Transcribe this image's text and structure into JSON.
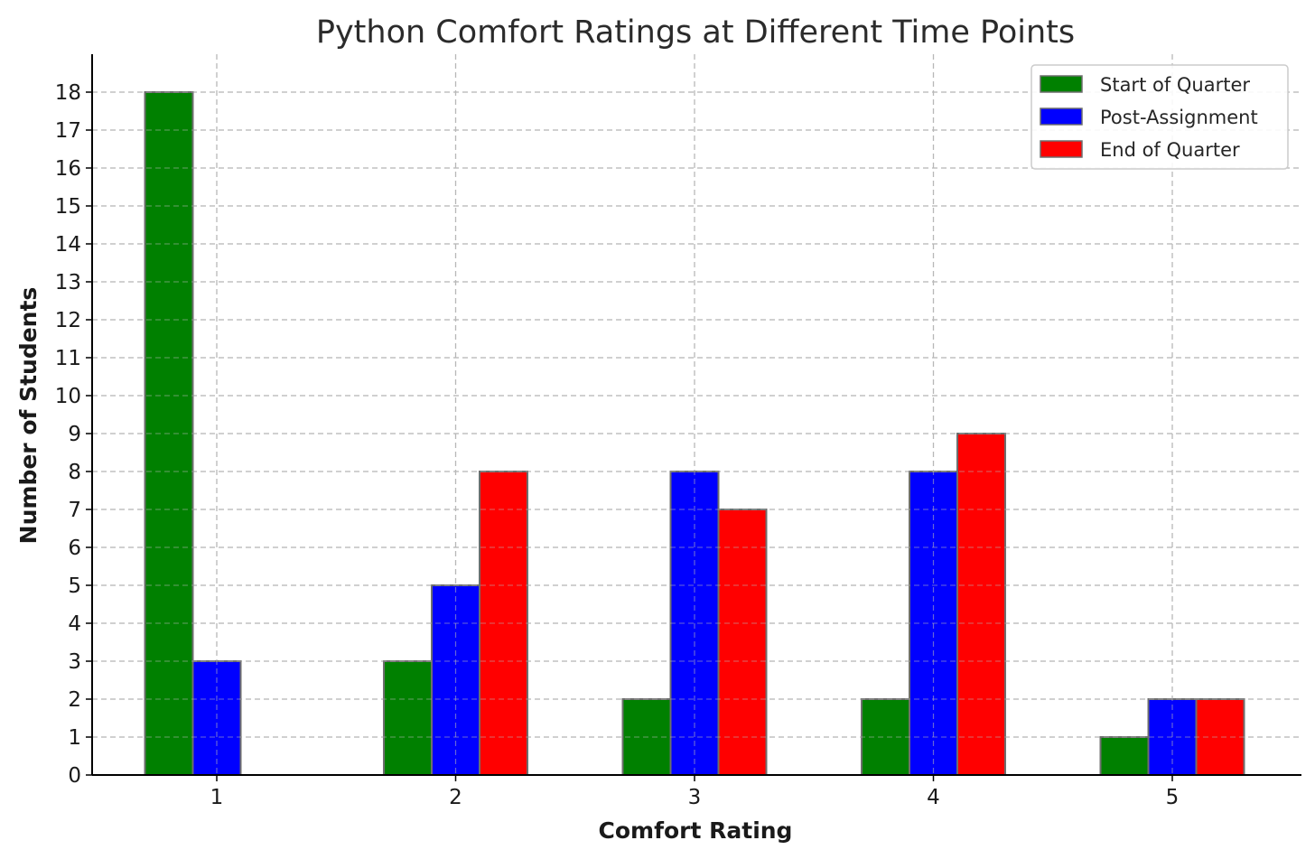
{
  "chart_data": {
    "type": "bar",
    "title": "Python Comfort Ratings at Different Time Points",
    "xlabel": "Comfort Rating",
    "ylabel": "Number of Students",
    "categories": [
      "1",
      "2",
      "3",
      "4",
      "5"
    ],
    "ylim": [
      0,
      19
    ],
    "yticks": [
      0,
      1,
      2,
      3,
      4,
      5,
      6,
      7,
      8,
      9,
      10,
      11,
      12,
      13,
      14,
      15,
      16,
      17,
      18
    ],
    "grid": true,
    "legend_position": "top-right",
    "series": [
      {
        "name": "Start of Quarter",
        "color": "#008000",
        "values": [
          18,
          3,
          2,
          2,
          1
        ]
      },
      {
        "name": "Post-Assignment",
        "color": "#0000ff",
        "values": [
          3,
          5,
          8,
          8,
          2
        ]
      },
      {
        "name": "End of Quarter",
        "color": "#ff0000",
        "values": [
          0,
          8,
          7,
          9,
          2
        ]
      }
    ]
  }
}
